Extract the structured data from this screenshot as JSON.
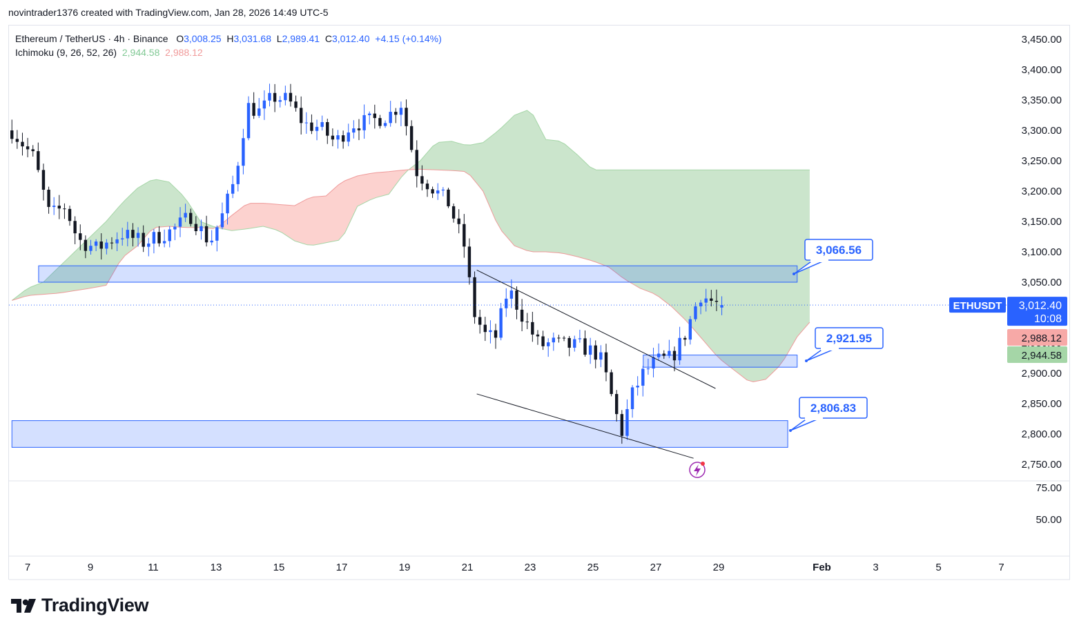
{
  "credit": "novintrader1376 created with TradingView.com, Jan 28, 2026 14:49 UTC-5",
  "legend": {
    "symbol": "Ethereum / TetherUS · 4h · Binance",
    "open_label": "O",
    "open": "3,008.25",
    "high_label": "H",
    "high": "3,031.68",
    "low_label": "L",
    "low": "2,989.41",
    "close_label": "C",
    "close": "3,012.40",
    "change": "+4.15 (+0.14%)",
    "indicator": "Ichimoku (9, 26, 52, 26)",
    "ichimoku_a": "2,944.58",
    "ichimoku_b": "2,988.12"
  },
  "brand": "TradingView",
  "chart_data": {
    "type": "candlestick",
    "ticker": "ETHUSDT",
    "countdown": "10:08",
    "price_axis": {
      "range": [
        2735,
        3475
      ],
      "ticks": [
        3450,
        3400,
        3350,
        3300,
        3250,
        3200,
        3150,
        3100,
        3050,
        3000,
        2950,
        2900,
        2850,
        2800,
        2750
      ],
      "tick_labels": [
        "3,450.00",
        "3,400.00",
        "3,350.00",
        "3,300.00",
        "3,250.00",
        "3,200.00",
        "3,150.00",
        "3,100.00",
        "3,050.00",
        "3,000.00",
        "2,950.00",
        "2,900.00",
        "2,850.00",
        "2,800.00",
        "2,750.00"
      ]
    },
    "sub_axis": {
      "ticks": [
        75,
        50
      ],
      "tick_labels": [
        "75.00",
        "50.00"
      ]
    },
    "time_axis": {
      "labels": [
        "7",
        "9",
        "11",
        "13",
        "15",
        "17",
        "19",
        "21",
        "23",
        "25",
        "27",
        "29",
        "Feb",
        "3",
        "5",
        "7"
      ],
      "day_index": [
        0,
        2,
        4,
        6,
        8,
        10,
        12,
        14,
        16,
        18,
        20,
        22,
        25,
        27,
        29,
        31
      ]
    },
    "last_price": 3012.4,
    "last_price_label": "3,012.40",
    "ichimoku_b_label": "2,988.12",
    "ichimoku_a_label": "2,944.58",
    "zones": [
      {
        "name": "upper-zone",
        "from_day": 0.35,
        "to_day": 24.5,
        "low": 3050,
        "high": 3077
      },
      {
        "name": "middle-zone",
        "from_day": 19.6,
        "to_day": 24.5,
        "low": 2910,
        "high": 2930
      },
      {
        "name": "lower-zone",
        "from_day": -0.5,
        "to_day": 24.2,
        "low": 2778,
        "high": 2822
      }
    ],
    "callouts": [
      {
        "label": "3,066.56",
        "price": 3066.56
      },
      {
        "label": "2,921.95",
        "price": 2921.95
      },
      {
        "label": "2,806.83",
        "price": 2806.83
      }
    ],
    "channel_upper": [
      [
        14.3,
        3070
      ],
      [
        21.9,
        2875
      ]
    ],
    "channel_lower": [
      [
        14.3,
        2866
      ],
      [
        21.2,
        2760
      ]
    ],
    "cloud": {
      "x": [
        -0.5,
        0,
        0.5,
        1,
        1.5,
        2,
        2.5,
        3,
        3.5,
        4,
        4.5,
        5,
        5.5,
        6,
        6.5,
        7,
        7.5,
        8,
        8.5,
        9,
        9.5,
        10,
        10.5,
        11,
        11.5,
        12,
        12.5,
        13,
        13.5,
        14,
        14.5,
        15,
        15.5,
        16,
        16.5,
        17,
        17.5,
        18,
        18.5,
        19,
        19.5,
        20,
        20.5,
        21,
        21.5,
        22,
        22.5,
        23,
        23.5,
        24,
        24.5,
        25
      ],
      "span_a": [
        3020,
        3040,
        3050,
        3075,
        3100,
        3125,
        3150,
        3180,
        3205,
        3220,
        3215,
        3190,
        3150,
        3140,
        3135,
        3138,
        3142,
        3135,
        3118,
        3110,
        3115,
        3120,
        3175,
        3188,
        3195,
        3230,
        3250,
        3280,
        3282,
        3275,
        3280,
        3300,
        3325,
        3335,
        3285,
        3282,
        3260,
        3235,
        3235,
        3235,
        3235,
        3235,
        3235,
        3235,
        3235,
        3235,
        3235,
        3235,
        3235,
        3235,
        3235,
        3235
      ],
      "span_b": [
        3020,
        3028,
        3030,
        3032,
        3036,
        3040,
        3045,
        3090,
        3110,
        3140,
        3142,
        3140,
        3140,
        3138,
        3160,
        3180,
        3180,
        3178,
        3176,
        3190,
        3192,
        3215,
        3225,
        3230,
        3232,
        3235,
        3236,
        3235,
        3234,
        3232,
        3200,
        3140,
        3110,
        3100,
        3100,
        3098,
        3092,
        3085,
        3075,
        3055,
        3040,
        3030,
        3010,
        2985,
        2955,
        2925,
        2905,
        2885,
        2890,
        2915,
        2960,
        2990
      ],
      "step_x": 0.2
    }
  }
}
